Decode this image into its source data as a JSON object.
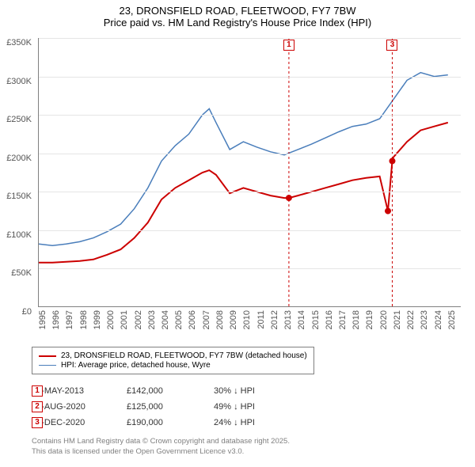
{
  "title": {
    "line1": "23, DRONSFIELD ROAD, FLEETWOOD, FY7 7BW",
    "line2": "Price paid vs. HM Land Registry's House Price Index (HPI)"
  },
  "chart": {
    "type": "line",
    "background_color": "#ffffff",
    "grid_color": "#e5e5e5",
    "axis_color": "#808080",
    "ylim": [
      0,
      350000
    ],
    "ytick_step": 50000,
    "y_ticks": [
      "£0",
      "£50K",
      "£100K",
      "£150K",
      "£200K",
      "£250K",
      "£300K",
      "£350K"
    ],
    "x_ticks": [
      1995,
      1996,
      1997,
      1998,
      1999,
      2000,
      2001,
      2002,
      2003,
      2004,
      2005,
      2006,
      2007,
      2008,
      2009,
      2010,
      2011,
      2012,
      2013,
      2014,
      2015,
      2016,
      2017,
      2018,
      2019,
      2020,
      2021,
      2022,
      2023,
      2024,
      2025
    ],
    "xlim": [
      1995,
      2026
    ],
    "series": [
      {
        "name": "property",
        "label": "23, DRONSFIELD ROAD, FLEETWOOD, FY7 7BW (detached house)",
        "color": "#cc0000",
        "line_width": 2,
        "data": [
          [
            1995,
            58000
          ],
          [
            1996,
            58000
          ],
          [
            1997,
            59000
          ],
          [
            1998,
            60000
          ],
          [
            1999,
            62000
          ],
          [
            2000,
            68000
          ],
          [
            2001,
            75000
          ],
          [
            2002,
            90000
          ],
          [
            2003,
            110000
          ],
          [
            2004,
            140000
          ],
          [
            2005,
            155000
          ],
          [
            2006,
            165000
          ],
          [
            2007,
            175000
          ],
          [
            2007.5,
            178000
          ],
          [
            2008,
            172000
          ],
          [
            2009,
            148000
          ],
          [
            2010,
            155000
          ],
          [
            2011,
            150000
          ],
          [
            2012,
            145000
          ],
          [
            2013,
            142000
          ],
          [
            2013.34,
            142000
          ],
          [
            2014,
            145000
          ],
          [
            2015,
            150000
          ],
          [
            2016,
            155000
          ],
          [
            2017,
            160000
          ],
          [
            2018,
            165000
          ],
          [
            2019,
            168000
          ],
          [
            2020,
            170000
          ],
          [
            2020.6,
            125000
          ],
          [
            2020.92,
            190000
          ],
          [
            2021,
            195000
          ],
          [
            2022,
            215000
          ],
          [
            2023,
            230000
          ],
          [
            2024,
            235000
          ],
          [
            2025,
            240000
          ]
        ]
      },
      {
        "name": "hpi",
        "label": "HPI: Average price, detached house, Wyre",
        "color": "#4a7ebb",
        "line_width": 1.5,
        "data": [
          [
            1995,
            82000
          ],
          [
            1996,
            80000
          ],
          [
            1997,
            82000
          ],
          [
            1998,
            85000
          ],
          [
            1999,
            90000
          ],
          [
            2000,
            98000
          ],
          [
            2001,
            108000
          ],
          [
            2002,
            128000
          ],
          [
            2003,
            155000
          ],
          [
            2004,
            190000
          ],
          [
            2005,
            210000
          ],
          [
            2006,
            225000
          ],
          [
            2007,
            250000
          ],
          [
            2007.5,
            258000
          ],
          [
            2008,
            240000
          ],
          [
            2009,
            205000
          ],
          [
            2010,
            215000
          ],
          [
            2011,
            208000
          ],
          [
            2012,
            202000
          ],
          [
            2013,
            198000
          ],
          [
            2014,
            205000
          ],
          [
            2015,
            212000
          ],
          [
            2016,
            220000
          ],
          [
            2017,
            228000
          ],
          [
            2018,
            235000
          ],
          [
            2019,
            238000
          ],
          [
            2020,
            245000
          ],
          [
            2021,
            270000
          ],
          [
            2022,
            295000
          ],
          [
            2023,
            305000
          ],
          [
            2024,
            300000
          ],
          [
            2025,
            302000
          ]
        ]
      }
    ],
    "top_markers": [
      {
        "n": "1",
        "x": 2013.34,
        "color": "#cc0000"
      },
      {
        "n": "3",
        "x": 2020.92,
        "color": "#cc0000"
      }
    ],
    "point_markers": [
      {
        "x": 2013.34,
        "y": 142000,
        "color": "#cc0000"
      },
      {
        "x": 2020.6,
        "y": 125000,
        "color": "#cc0000"
      },
      {
        "x": 2020.92,
        "y": 190000,
        "color": "#cc0000"
      }
    ]
  },
  "legend": {
    "items": [
      {
        "color": "#cc0000",
        "width": 2,
        "label_key": "chart.series.0.label"
      },
      {
        "color": "#4a7ebb",
        "width": 1.5,
        "label_key": "chart.series.1.label"
      }
    ]
  },
  "table": {
    "rows": [
      {
        "n": "1",
        "date": "03-MAY-2013",
        "price": "£142,000",
        "pct": "30% ↓ HPI"
      },
      {
        "n": "2",
        "date": "07-AUG-2020",
        "price": "£125,000",
        "pct": "49% ↓ HPI"
      },
      {
        "n": "3",
        "date": "01-DEC-2020",
        "price": "£190,000",
        "pct": "24% ↓ HPI"
      }
    ]
  },
  "footer": {
    "line1": "Contains HM Land Registry data © Crown copyright and database right 2025.",
    "line2": "This data is licensed under the Open Government Licence v3.0."
  }
}
